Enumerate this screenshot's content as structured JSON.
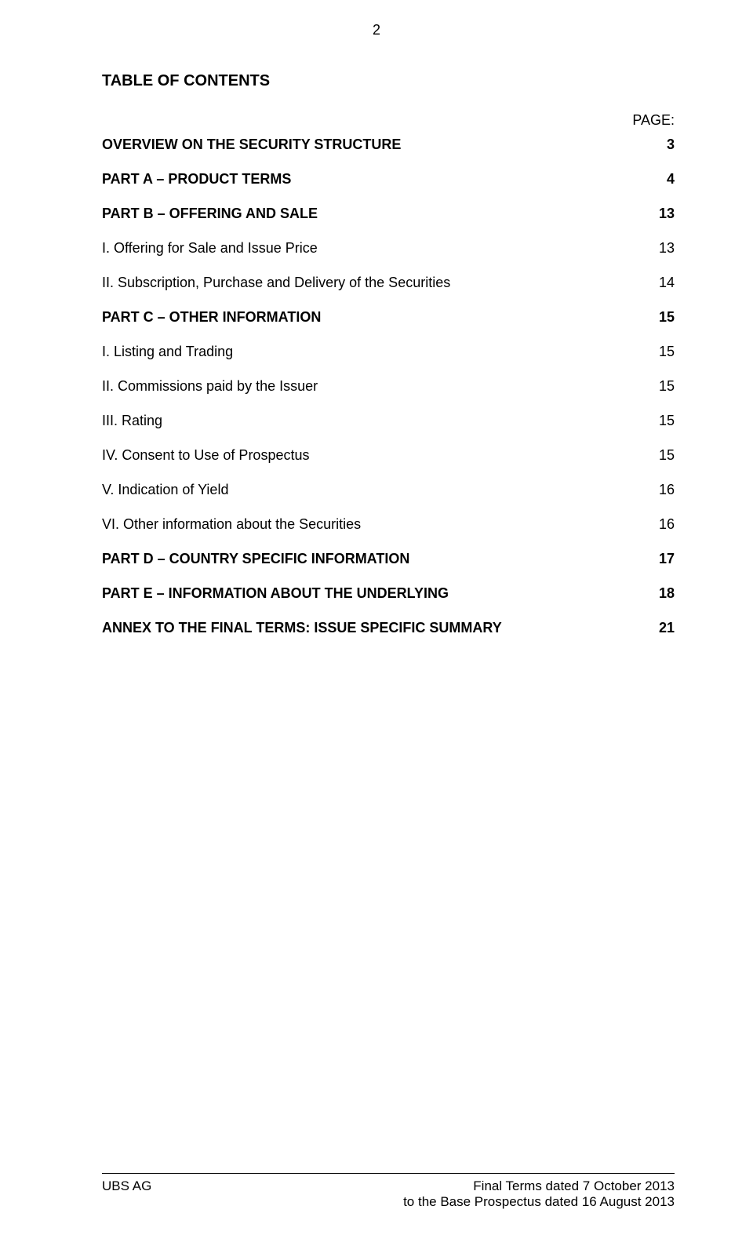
{
  "page_number": "2",
  "title": "TABLE OF CONTENTS",
  "page_label": "PAGE:",
  "entries": [
    {
      "label": "OVERVIEW ON THE SECURITY STRUCTURE",
      "page": "3",
      "bold": true
    },
    {
      "label": "PART A – PRODUCT TERMS",
      "page": "4",
      "bold": true
    },
    {
      "label": "PART B – OFFERING AND SALE",
      "page": "13",
      "bold": true
    },
    {
      "label": "I. Offering for Sale and Issue Price",
      "page": "13",
      "bold": false
    },
    {
      "label": "II. Subscription, Purchase and Delivery of the Securities",
      "page": "14",
      "bold": false
    },
    {
      "label": "PART C – OTHER INFORMATION",
      "page": "15",
      "bold": true
    },
    {
      "label": "I. Listing and Trading",
      "page": "15",
      "bold": false
    },
    {
      "label": "II. Commissions paid by the Issuer",
      "page": "15",
      "bold": false
    },
    {
      "label": "III. Rating",
      "page": "15",
      "bold": false
    },
    {
      "label": "IV. Consent to Use of Prospectus",
      "page": "15",
      "bold": false
    },
    {
      "label": "V. Indication of Yield",
      "page": "16",
      "bold": false
    },
    {
      "label": "VI. Other information about the Securities",
      "page": "16",
      "bold": false
    },
    {
      "label": "PART D – COUNTRY SPECIFIC INFORMATION",
      "page": "17",
      "bold": true
    },
    {
      "label": "PART E – INFORMATION ABOUT THE UNDERLYING",
      "page": "18",
      "bold": true
    },
    {
      "label": "ANNEX TO THE FINAL TERMS: ISSUE SPECIFIC SUMMARY",
      "page": "21",
      "bold": true
    }
  ],
  "footer": {
    "left": "UBS AG",
    "right_line1": "Final Terms dated 7 October 2013",
    "right_line2": "to the Base Prospectus dated 16 August 2013"
  },
  "style": {
    "font_family": "Segoe UI, Frutiger, Helvetica Neue, Arial, sans-serif",
    "background": "#ffffff",
    "text_color": "#000000",
    "title_fontsize": 20,
    "body_fontsize": 18,
    "footer_fontsize": 17,
    "row_spacing": 23,
    "border_color": "#000000"
  }
}
